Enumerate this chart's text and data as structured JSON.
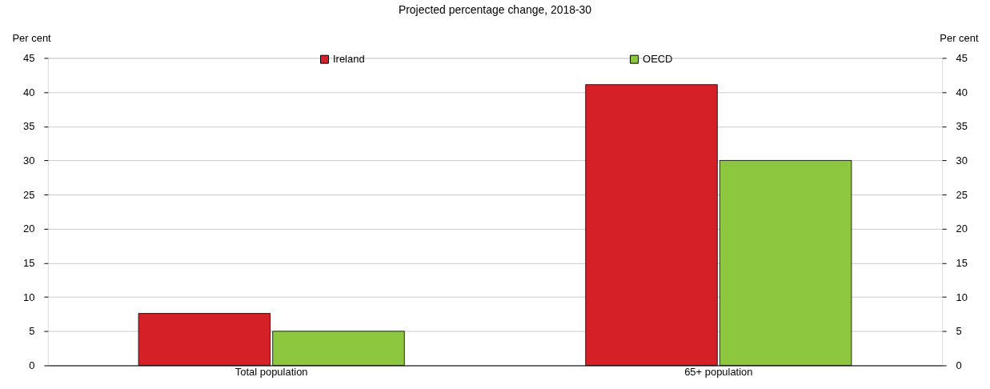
{
  "chart_data": {
    "type": "bar",
    "title": "Projected percentage change, 2018-30",
    "ylabel": "Per cent",
    "y2label": "Per cent",
    "categories": [
      "Total population",
      "65+ population"
    ],
    "series": [
      {
        "name": "Ireland",
        "color": "#d62027",
        "values": [
          7.6,
          41.1
        ]
      },
      {
        "name": "OECD",
        "color": "#8dc63f",
        "values": [
          5.0,
          30.0
        ]
      }
    ],
    "ylim": [
      0,
      45
    ],
    "yticks": [
      0,
      5,
      10,
      15,
      20,
      25,
      30,
      35,
      40,
      45
    ],
    "y2lim": [
      0,
      45
    ],
    "y2ticks": [
      0,
      5,
      10,
      15,
      20,
      25,
      30,
      35,
      40,
      45
    ],
    "grid": "y",
    "legend": "top"
  }
}
